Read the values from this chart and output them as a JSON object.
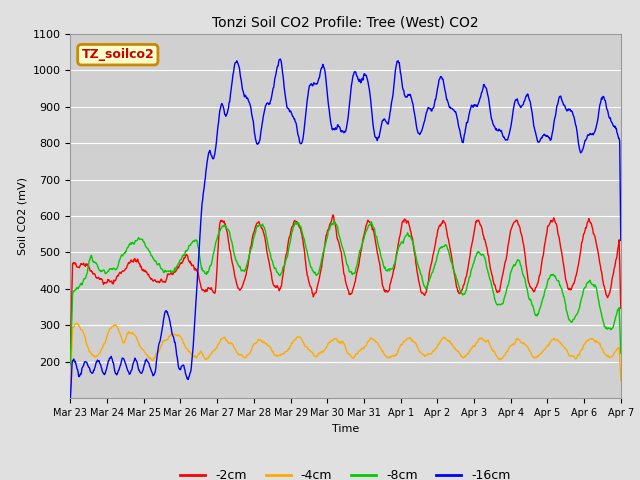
{
  "title": "Tonzi Soil CO2 Profile: Tree (West) CO2",
  "ylabel": "Soil CO2 (mV)",
  "xlabel": "Time",
  "ylim": [
    100,
    1100
  ],
  "background_color": "#e0e0e0",
  "plot_bg_color": "#d0d0d0",
  "legend_label": "TZ_soilco2",
  "legend_bg": "#ffffcc",
  "legend_edge": "#cc8800",
  "series": [
    {
      "label": "-2cm",
      "color": "#ff0000"
    },
    {
      "label": "-4cm",
      "color": "#ffaa00"
    },
    {
      "label": "-8cm",
      "color": "#00cc00"
    },
    {
      "label": "-16cm",
      "color": "#0000ff"
    }
  ],
  "xtick_labels": [
    "Mar 23",
    "Mar 24",
    "Mar 25",
    "Mar 26",
    "Mar 27",
    "Mar 28",
    "Mar 29",
    "Mar 30",
    "Mar 31",
    "Apr 1",
    "Apr 2",
    "Apr 3",
    "Apr 4",
    "Apr 5",
    "Apr 6",
    "Apr 7"
  ],
  "ytick_labels": [
    200,
    300,
    400,
    500,
    600,
    700,
    800,
    900,
    1000,
    1100
  ],
  "n_points": 1000,
  "seed": 42
}
